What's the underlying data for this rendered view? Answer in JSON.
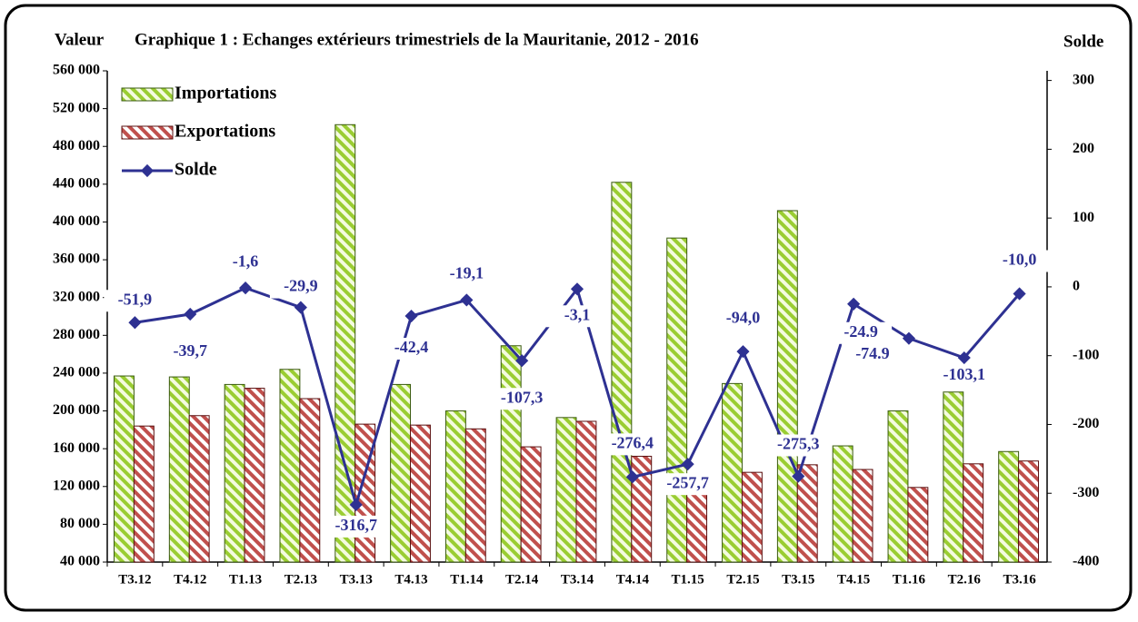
{
  "chart_data": {
    "type": "bar_line",
    "title": "Graphique 1 : Echanges extérieurs trimestriels de la Mauritanie, 2012 - 2016",
    "y_label": "Valeur",
    "y2_label": "Solde",
    "categories": [
      "T3.12",
      "T4.12",
      "T1.13",
      "T2.13",
      "T3.13",
      "T4.13",
      "T1.14",
      "T2.14",
      "T3.14",
      "T4.14",
      "T1.15",
      "T2.15",
      "T3.15",
      "T4.15",
      "T1.16",
      "T2.16",
      "T3.16"
    ],
    "series": [
      {
        "name": "Importations",
        "type": "bar",
        "color": "#9acd32",
        "values": [
          237000,
          236000,
          228000,
          244000,
          503000,
          228000,
          200000,
          269000,
          193000,
          442000,
          383000,
          229000,
          412000,
          163000,
          200000,
          220000,
          157000
        ]
      },
      {
        "name": "Exportations",
        "type": "bar",
        "color": "#c0504d",
        "values": [
          184000,
          195000,
          224000,
          213000,
          186000,
          185000,
          181000,
          162000,
          189000,
          152000,
          125000,
          135000,
          143000,
          138000,
          119000,
          144000,
          147000
        ]
      },
      {
        "name": "Solde",
        "type": "line",
        "axis": "y2",
        "color": "#2e3192",
        "values": [
          -51.9,
          -39.7,
          -1.6,
          -29.9,
          -316.7,
          -42.4,
          -19.1,
          -107.3,
          -3.1,
          -276.4,
          -257.7,
          -94.0,
          -275.3,
          -24.9,
          -74.9,
          -103.1,
          -10.0
        ],
        "value_labels": [
          "-51,9",
          "-39,7",
          "-1,6",
          "-29,9",
          "-316,7",
          "-42,4",
          "-19,1",
          "-107,3",
          "-3,1",
          "-276,4",
          "-257,7",
          "-94,0",
          "-275,3",
          "-24.9",
          "-74.9",
          "-103,1",
          "-10,0"
        ]
      }
    ],
    "ylim": [
      40000,
      560000
    ],
    "yticks": [
      {
        "value": 40000,
        "label": "40 000"
      },
      {
        "value": 80000,
        "label": "80 000"
      },
      {
        "value": 120000,
        "label": "120 000"
      },
      {
        "value": 160000,
        "label": "160 000"
      },
      {
        "value": 200000,
        "label": "200 000"
      },
      {
        "value": 240000,
        "label": "240 000"
      },
      {
        "value": 280000,
        "label": "280 000"
      },
      {
        "value": 320000,
        "label": "320 000"
      },
      {
        "value": 360000,
        "label": "360 000"
      },
      {
        "value": 400000,
        "label": "400 000"
      },
      {
        "value": 440000,
        "label": "440 000"
      },
      {
        "value": 480000,
        "label": "480 000"
      },
      {
        "value": 520000,
        "label": "520 000"
      },
      {
        "value": 560000,
        "label": "560 000"
      }
    ],
    "y2lim": [
      -400,
      314
    ],
    "y2ticks": [
      300,
      200,
      100,
      0,
      -100,
      -200,
      -300,
      -400
    ],
    "legend": "top-left"
  }
}
